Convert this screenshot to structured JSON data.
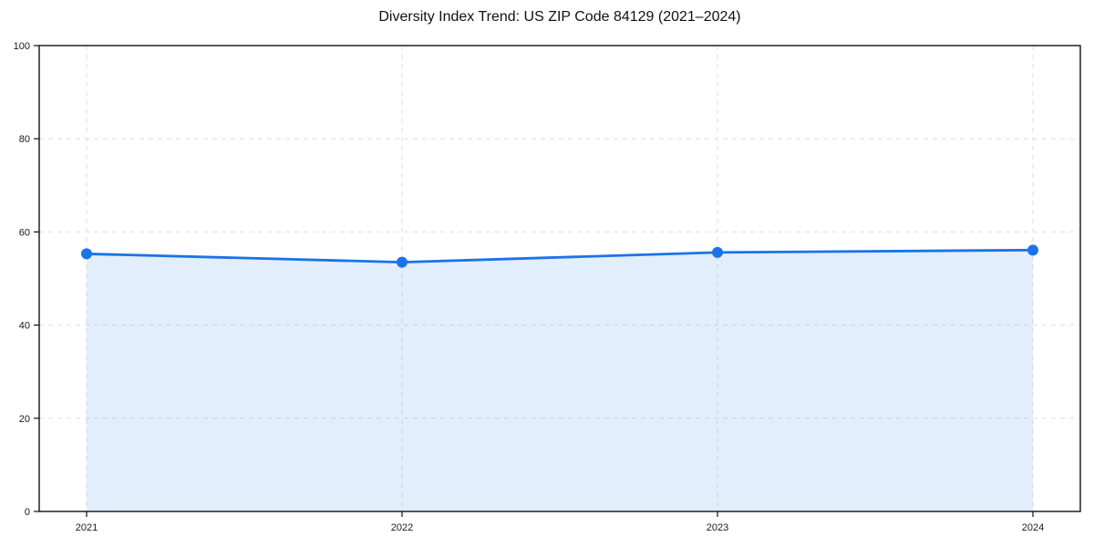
{
  "chart_data": {
    "type": "area",
    "title": "Diversity Index Trend: US ZIP Code 84129 (2021–2024)",
    "categories": [
      "2021",
      "2022",
      "2023",
      "2024"
    ],
    "values": [
      55.3,
      53.5,
      55.6,
      56.1
    ],
    "series_name": "Diversity Index",
    "xlabel": "",
    "ylabel": "",
    "ylim": [
      0,
      100
    ],
    "yticks": [
      0,
      20,
      40,
      60,
      80,
      100
    ],
    "grid": true,
    "legend": "none",
    "line_color": "#1a73e8",
    "marker_color": "#1a73e8",
    "fill_color": "#1a73e8",
    "fill_opacity": 0.12,
    "grid_color": "#dedede",
    "spine_color": "#111111",
    "background_color": "#ffffff"
  }
}
